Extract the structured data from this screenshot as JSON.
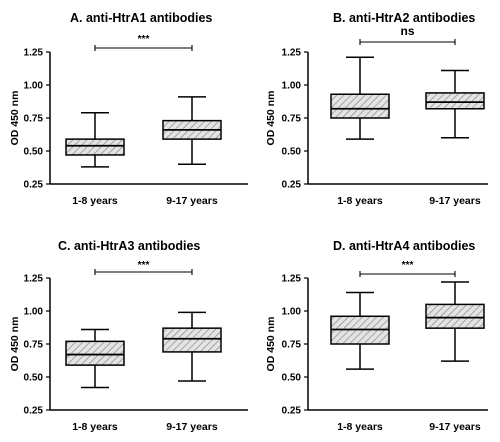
{
  "chart_data": [
    {
      "type": "box",
      "title": "A.   anti-HtrA1 antibodies",
      "ylabel": "OD 450 nm",
      "ylim": [
        0.25,
        1.25
      ],
      "yticks": [
        "0.25",
        "0.50",
        "0.75",
        "1.00",
        "1.25"
      ],
      "categories": [
        "1-8 years",
        "9-17 years"
      ],
      "boxes": [
        {
          "min": 0.38,
          "q1": 0.47,
          "median": 0.54,
          "q3": 0.59,
          "max": 0.79
        },
        {
          "min": 0.4,
          "q1": 0.59,
          "median": 0.66,
          "q3": 0.73,
          "max": 0.91
        }
      ],
      "significance": "***"
    },
    {
      "type": "box",
      "title": "B.   anti-HtrA2 antibodies",
      "ylabel": "OD 450 nm",
      "ylim": [
        0.25,
        1.25
      ],
      "yticks": [
        "0.25",
        "0.50",
        "0.75",
        "1.00",
        "1.25"
      ],
      "categories": [
        "1-8 years",
        "9-17 years"
      ],
      "boxes": [
        {
          "min": 0.59,
          "q1": 0.75,
          "median": 0.82,
          "q3": 0.93,
          "max": 1.21
        },
        {
          "min": 0.6,
          "q1": 0.82,
          "median": 0.87,
          "q3": 0.94,
          "max": 1.11
        }
      ],
      "significance": "ns"
    },
    {
      "type": "box",
      "title": "C.  anti-HtrA3  antibodies",
      "ylabel": "OD 450 nm",
      "ylim": [
        0.25,
        1.25
      ],
      "yticks": [
        "0.25",
        "0.50",
        "0.75",
        "1.00",
        "1.25"
      ],
      "categories": [
        "1-8 years",
        "9-17 years"
      ],
      "boxes": [
        {
          "min": 0.42,
          "q1": 0.59,
          "median": 0.67,
          "q3": 0.77,
          "max": 0.86
        },
        {
          "min": 0.47,
          "q1": 0.69,
          "median": 0.79,
          "q3": 0.87,
          "max": 0.99
        }
      ],
      "significance": "***"
    },
    {
      "type": "box",
      "title": "D.   anti-HtrA4 antibodies",
      "ylabel": "OD 450 nm",
      "ylim": [
        0.25,
        1.25
      ],
      "yticks": [
        "0.25",
        "0.50",
        "0.75",
        "1.00",
        "1.25"
      ],
      "categories": [
        "1-8 years",
        "9-17 years"
      ],
      "boxes": [
        {
          "min": 0.56,
          "q1": 0.75,
          "median": 0.86,
          "q3": 0.96,
          "max": 1.14
        },
        {
          "min": 0.62,
          "q1": 0.87,
          "median": 0.95,
          "q3": 1.05,
          "max": 1.22
        }
      ],
      "significance": "***"
    }
  ]
}
